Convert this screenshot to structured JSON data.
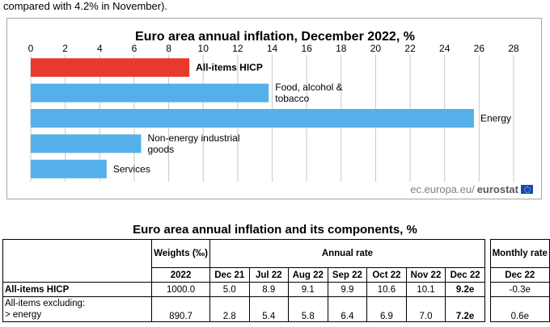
{
  "intro_text": "compared with 4.2% in November).",
  "chart_data": {
    "type": "bar",
    "orientation": "horizontal",
    "title": "Euro area annual inflation, December 2022, %",
    "xlim": [
      0,
      28
    ],
    "ticks": [
      0,
      2,
      4,
      6,
      8,
      10,
      12,
      14,
      16,
      18,
      20,
      22,
      24,
      26,
      28
    ],
    "categories": [
      [
        "All-items HICP"
      ],
      [
        "Food, alcohol &",
        "tobacco"
      ],
      [
        "Energy"
      ],
      [
        "Non-energy industrial",
        "goods"
      ],
      [
        "Services"
      ]
    ],
    "values": [
      9.2,
      13.8,
      25.7,
      6.4,
      4.4
    ],
    "colors": [
      "#e8392f",
      "#55b0ea",
      "#55b0ea",
      "#55b0ea",
      "#55b0ea"
    ],
    "highlight_index": 0
  },
  "source": {
    "site": "ec.europa.eu/",
    "brand": "eurostat"
  },
  "table": {
    "title": "Euro area annual inflation and its components, %",
    "weights_header": "Weights (‰)",
    "annual_header": "Annual rate",
    "monthly_header": "Monthly rate",
    "weights_year": "2022",
    "months": [
      "Dec 21",
      "Jul 22",
      "Aug 22",
      "Sep 22",
      "Oct 22",
      "Nov 22",
      "Dec 22"
    ],
    "monthly_month": "Dec 22",
    "rows": [
      {
        "label": "All-items HICP",
        "weight": "1000.0",
        "annual": [
          "5.0",
          "8.9",
          "9.1",
          "9.9",
          "10.6",
          "10.1",
          "9.2e"
        ],
        "monthly": "-0.3e"
      },
      {
        "label_line1": "All-items excluding:",
        "label_line2": "> energy",
        "weight": "890.7",
        "annual": [
          "2.8",
          "5.4",
          "5.8",
          "6.4",
          "6.9",
          "7.0",
          "7.2e"
        ],
        "monthly": "0.6e"
      }
    ]
  }
}
